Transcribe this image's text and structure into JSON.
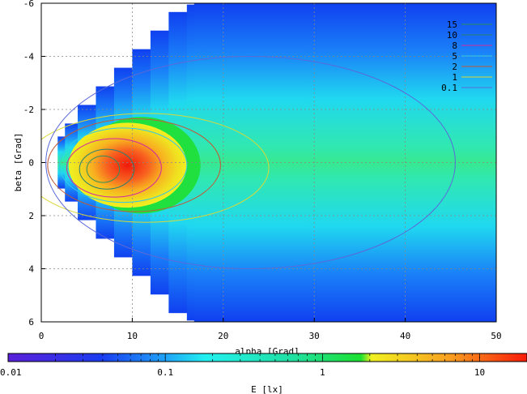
{
  "chart_data": {
    "type": "heatmap",
    "xlabel": "alpha [Grad]",
    "ylabel": "beta [Grad]",
    "colorbar_label": "E [lx]",
    "xlim": [
      0,
      50
    ],
    "ylim": [
      -6,
      6
    ],
    "y_inverted": true,
    "x_ticks": [
      "0",
      "10",
      "20",
      "30",
      "40",
      "50"
    ],
    "y_ticks": [
      "-6",
      "-4",
      "-2",
      "0",
      "2",
      "4",
      "6"
    ],
    "colorbar_scale": "log",
    "colorbar_range": [
      0.01,
      20
    ],
    "colorbar_ticks": [
      "0.01",
      "0.1",
      "1",
      "10"
    ],
    "grid": true,
    "legend_position": "top-right",
    "contour_levels": [
      {
        "label": "15",
        "value": 15,
        "color": "#2f8f5a"
      },
      {
        "label": "10",
        "value": 10,
        "color": "#2a7f6f"
      },
      {
        "label": "8",
        "value": 8,
        "color": "#d02aa0"
      },
      {
        "label": "5",
        "value": 5,
        "color": "#32c8e8"
      },
      {
        "label": "2",
        "value": 2,
        "color": "#c05a3a"
      },
      {
        "label": "1",
        "value": 1,
        "color": "#d8d838"
      },
      {
        "label": "0.1",
        "value": 0.1,
        "color": "#5a6ad8"
      }
    ],
    "peak": {
      "alpha": 6.5,
      "beta": 0.3,
      "E": 18
    }
  }
}
